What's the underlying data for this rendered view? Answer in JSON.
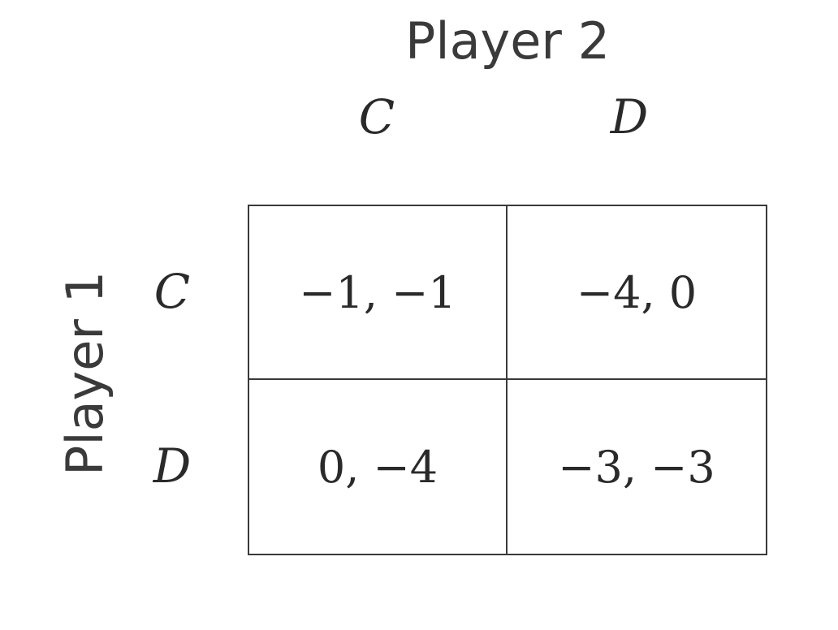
{
  "game": {
    "player2_label": "Player 2",
    "player1_label": "Player 1",
    "column_strategies": [
      "C",
      "D"
    ],
    "row_strategies": [
      "C",
      "D"
    ],
    "payoffs": [
      [
        "−1, −1",
        "−4, 0"
      ],
      [
        "0, −4",
        "−3, −3"
      ]
    ]
  }
}
